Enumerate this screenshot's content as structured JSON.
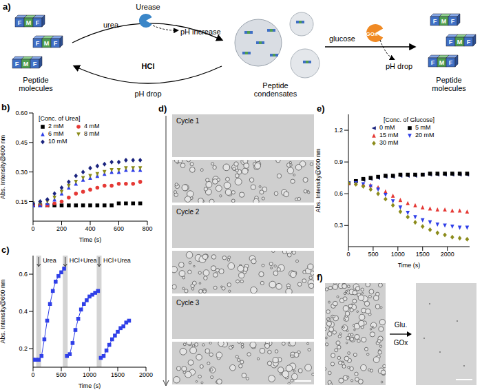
{
  "diagram": {
    "panel": "a)",
    "peptide": [
      "F",
      "M",
      "F"
    ],
    "left_label": "Peptide molecules",
    "middle_label": "Peptide condensates",
    "right_label": "Peptide molecules",
    "enzyme1": "Urease",
    "substrate1": "urea",
    "effect1": "pH increase",
    "reverse_agent": "HCl",
    "reverse_effect": "pH drop",
    "substrate2": "glucose",
    "enzyme2": "GOx",
    "effect2": "pH drop"
  },
  "chart_data": [
    {
      "panel": "b)",
      "type": "scatter",
      "x_label": "Time (s)",
      "y_label": "Abs. Intensity@600 nm",
      "legend_title": "[Conc. of Urea]",
      "legend": "upper left",
      "x": [
        0,
        50,
        100,
        150,
        200,
        250,
        300,
        350,
        400,
        450,
        500,
        550,
        600,
        650,
        700,
        750
      ],
      "series": [
        {
          "name": "2 mM",
          "color": "#000000",
          "marker": "square",
          "values": [
            0.13,
            0.13,
            0.13,
            0.13,
            0.13,
            0.13,
            0.13,
            0.13,
            0.13,
            0.13,
            0.13,
            0.13,
            0.14,
            0.14,
            0.14,
            0.14
          ]
        },
        {
          "name": "4 mM",
          "color": "#e53935",
          "marker": "circle",
          "values": [
            0.13,
            0.13,
            0.13,
            0.14,
            0.15,
            0.17,
            0.19,
            0.2,
            0.21,
            0.22,
            0.23,
            0.23,
            0.24,
            0.24,
            0.24,
            0.25
          ]
        },
        {
          "name": "6 mM",
          "color": "#2f3fe8",
          "marker": "triangle_up",
          "values": [
            0.13,
            0.13,
            0.14,
            0.16,
            0.19,
            0.22,
            0.24,
            0.26,
            0.27,
            0.28,
            0.29,
            0.3,
            0.3,
            0.31,
            0.31,
            0.31
          ]
        },
        {
          "name": "8 mM",
          "color": "#8b8b1a",
          "marker": "triangle_down",
          "values": [
            0.14,
            0.14,
            0.15,
            0.17,
            0.2,
            0.23,
            0.25,
            0.27,
            0.28,
            0.29,
            0.3,
            0.31,
            0.31,
            0.32,
            0.32,
            0.32
          ]
        },
        {
          "name": "10 mM",
          "color": "#1a237e",
          "marker": "diamond",
          "values": [
            0.14,
            0.15,
            0.16,
            0.19,
            0.22,
            0.25,
            0.28,
            0.3,
            0.32,
            0.33,
            0.34,
            0.35,
            0.35,
            0.36,
            0.36,
            0.36
          ]
        }
      ],
      "xlim": [
        0,
        800
      ],
      "xticks": [
        0,
        200,
        400,
        600,
        800
      ],
      "ylim": [
        0.05,
        0.6
      ],
      "yticks": [
        0.15,
        {
          "value": 0.3,
          "label": "0.30"
        },
        0.45,
        {
          "value": 0.6,
          "label": "0.60"
        }
      ]
    },
    {
      "panel": "c)",
      "type": "line",
      "x_label": "Time (s)",
      "y_label": "Abs. Intensity@600 nm",
      "x": [
        0,
        50,
        100,
        150,
        200,
        250,
        300,
        350,
        400,
        450,
        500,
        550,
        570,
        600,
        650,
        700,
        750,
        800,
        850,
        900,
        950,
        1000,
        1050,
        1100,
        1150,
        1170,
        1200,
        1250,
        1300,
        1350,
        1400,
        1450,
        1500,
        1550,
        1600,
        1650,
        1700
      ],
      "series": [
        {
          "color": "#2f3fe8",
          "marker": "square",
          "values": [
            0.14,
            0.14,
            0.14,
            0.16,
            0.25,
            0.35,
            0.44,
            0.51,
            0.56,
            0.59,
            0.61,
            0.63,
            null,
            0.16,
            0.17,
            0.23,
            0.3,
            0.36,
            0.41,
            0.44,
            0.46,
            0.48,
            0.49,
            0.5,
            0.51,
            null,
            0.15,
            0.16,
            0.19,
            0.22,
            0.25,
            0.27,
            0.29,
            0.31,
            0.32,
            0.34,
            0.35
          ]
        }
      ],
      "annotations": [
        {
          "text": "Urea",
          "x": 100
        },
        {
          "text": "HCl+Urea",
          "x": 570
        },
        {
          "text": "HCl+Urea",
          "x": 1170
        }
      ],
      "xlim": [
        0,
        2000
      ],
      "xticks": [
        0,
        500,
        1000,
        1500,
        2000
      ],
      "ylim": [
        0.1,
        0.7
      ],
      "yticks": [
        0.2,
        0.4,
        0.6
      ]
    },
    {
      "panel": "e)",
      "type": "scatter",
      "x_label": "Time (s)",
      "y_label": "Abs. Intensity@600 nm",
      "legend_title": "[Conc. of Glucose]",
      "legend": "upper center",
      "x": [
        0,
        150,
        300,
        450,
        600,
        750,
        900,
        1050,
        1200,
        1350,
        1500,
        1650,
        1800,
        1950,
        2100,
        2250,
        2400
      ],
      "series": [
        {
          "name": "0 mM",
          "color": "#1a237e",
          "marker": "triangle_left",
          "values": [
            0.7,
            0.72,
            0.73,
            0.74,
            0.75,
            0.76,
            0.76,
            0.77,
            0.77,
            0.77,
            0.78,
            0.78,
            0.78,
            0.78,
            0.78,
            0.78,
            0.78
          ]
        },
        {
          "name": "5 mM",
          "color": "#000000",
          "marker": "square",
          "values": [
            0.7,
            0.72,
            0.74,
            0.75,
            0.76,
            0.77,
            0.77,
            0.78,
            0.78,
            0.78,
            0.78,
            0.79,
            0.79,
            0.79,
            0.79,
            0.79,
            0.79
          ]
        },
        {
          "name": "15 mM",
          "color": "#e53935",
          "marker": "triangle_up",
          "values": [
            0.7,
            0.7,
            0.69,
            0.68,
            0.66,
            0.62,
            0.58,
            0.54,
            0.51,
            0.49,
            0.47,
            0.46,
            0.45,
            0.45,
            0.44,
            0.44,
            0.43
          ]
        },
        {
          "name": "20 mM",
          "color": "#2f3fe8",
          "marker": "triangle_down",
          "values": [
            0.7,
            0.7,
            0.69,
            0.67,
            0.64,
            0.59,
            0.53,
            0.47,
            0.42,
            0.38,
            0.35,
            0.33,
            0.31,
            0.3,
            0.29,
            0.28,
            0.28
          ]
        },
        {
          "name": "30 mM",
          "color": "#8b8b1a",
          "marker": "diamond",
          "values": [
            0.7,
            0.69,
            0.67,
            0.64,
            0.6,
            0.55,
            0.49,
            0.43,
            0.38,
            0.33,
            0.29,
            0.26,
            0.23,
            0.21,
            0.19,
            0.18,
            0.17
          ]
        }
      ],
      "xlim": [
        0,
        2450
      ],
      "xticks": [
        0,
        500,
        1000,
        1500,
        2000
      ],
      "ylim": [
        0.1,
        1.35
      ],
      "yticks": [
        0.3,
        0.6,
        0.9,
        1.2
      ]
    }
  ],
  "micrographs": [
    {
      "panel": "d)",
      "labels": [
        "Cycle 1",
        "Cycle 2",
        "Cycle 3"
      ]
    },
    {
      "panel": "f)",
      "labels": [
        "Glu.",
        "GOx"
      ]
    }
  ]
}
